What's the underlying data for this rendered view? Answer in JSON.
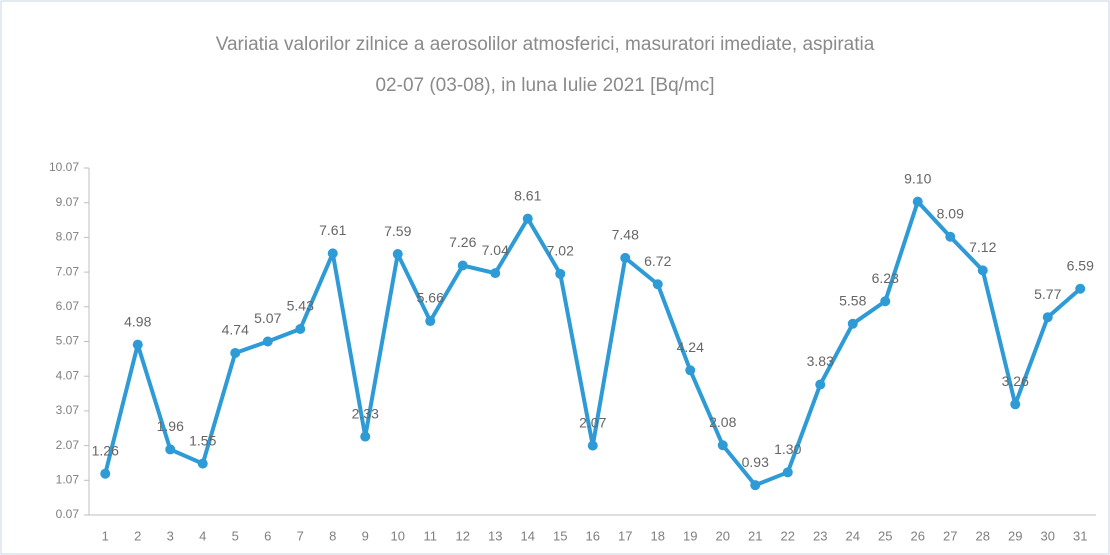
{
  "chart_data": {
    "type": "line",
    "title": "Variatia valorilor zilnice a aerosolilor atmosferici, masuratori imediate, aspiratia",
    "subtitle": "02-07 (03-08),  in luna Iulie 2021 [Bq/mc]",
    "categories": [
      "1",
      "2",
      "3",
      "4",
      "5",
      "6",
      "7",
      "8",
      "9",
      "10",
      "11",
      "12",
      "13",
      "14",
      "15",
      "16",
      "17",
      "18",
      "19",
      "20",
      "21",
      "22",
      "23",
      "24",
      "25",
      "26",
      "27",
      "28",
      "29",
      "30",
      "31"
    ],
    "values": [
      1.26,
      4.98,
      1.96,
      1.55,
      4.74,
      5.07,
      5.43,
      7.61,
      2.33,
      7.59,
      5.66,
      7.26,
      7.04,
      8.61,
      7.02,
      2.07,
      7.48,
      6.72,
      4.24,
      2.08,
      0.93,
      1.3,
      3.83,
      5.58,
      6.23,
      9.1,
      8.09,
      7.12,
      3.26,
      5.77,
      6.59
    ],
    "value_labels": [
      "1.26",
      "4.98",
      "1.96",
      "1.55",
      "4.74",
      "5.07",
      "5.43",
      "7.61",
      "2.33",
      "7.59",
      "5.66",
      "7.26",
      "7.04",
      "8.61",
      "7.02",
      "2.07",
      "7.48",
      "6.72",
      "4.24",
      "2.08",
      "0.93",
      "1.30",
      "3.83",
      "5.58",
      "6.23",
      "9.10",
      "8.09",
      "7.12",
      "3.26",
      "5.77",
      "6.59"
    ],
    "color": "#2e9bd6",
    "ylim": [
      0.07,
      10.07
    ],
    "yticks": [
      0.07,
      1.07,
      2.07,
      3.07,
      4.07,
      5.07,
      6.07,
      7.07,
      8.07,
      9.07,
      10.07
    ],
    "grid": false
  }
}
